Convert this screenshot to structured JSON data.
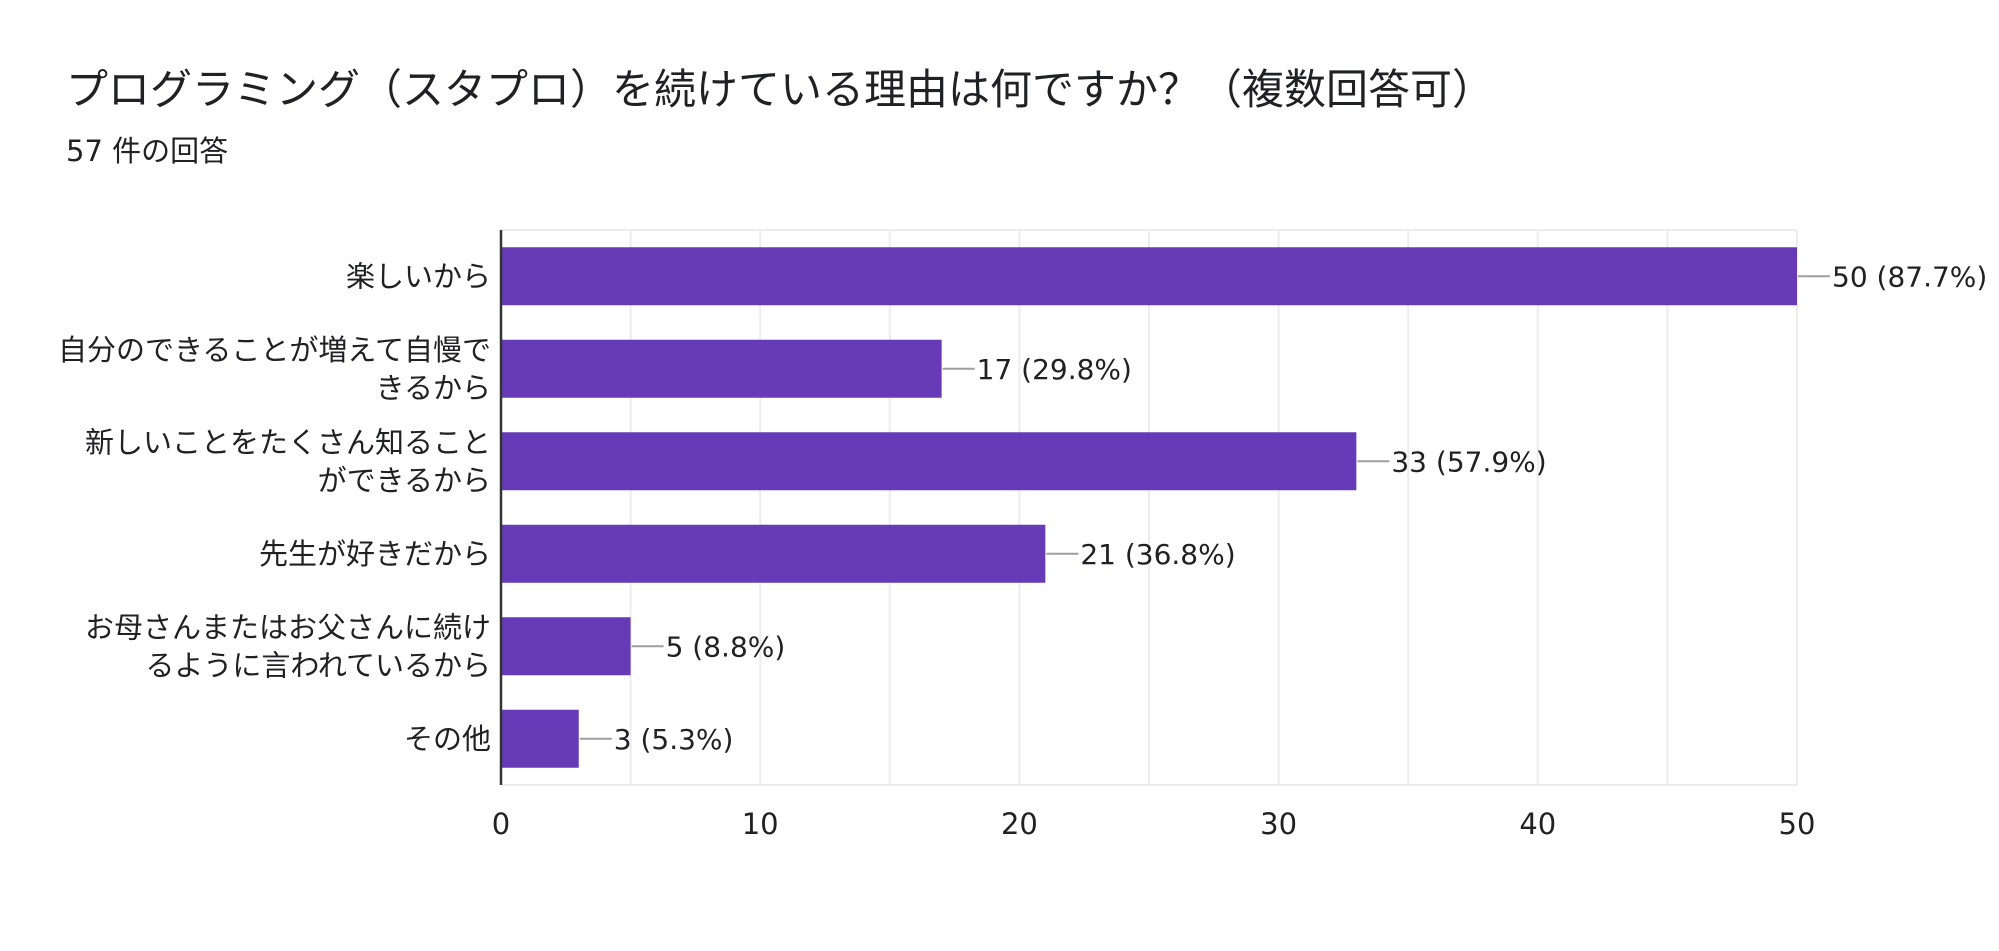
{
  "title": "プログラミング（スタプロ）を続けている理由は何ですか？（複数回答可）",
  "subtitle": "57 件の回答",
  "colors": {
    "bar": "#673ab7",
    "text": "#202124",
    "grid": "#ececec",
    "axis": "#333333",
    "leader": "#9e9e9e"
  },
  "chart_data": {
    "type": "bar",
    "orientation": "horizontal",
    "title": "プログラミング（スタプロ）を続けている理由は何ですか？（複数回答可）",
    "subtitle": "57 件の回答",
    "categories": [
      [
        "楽しいから"
      ],
      [
        "自分のできることが増えて自慢で",
        "きるから"
      ],
      [
        "新しいことをたくさん知ること",
        "ができるから"
      ],
      [
        "先生が好きだから"
      ],
      [
        "お母さんまたはお父さんに続け",
        "るように言われているから"
      ],
      [
        "その他"
      ]
    ],
    "values": [
      50,
      17,
      33,
      21,
      5,
      3
    ],
    "data_labels": [
      "50 (87.7%)",
      "17 (29.8%)",
      "33 (57.9%)",
      "21 (36.8%)",
      "5 (8.8%)",
      "3 (5.3%)"
    ],
    "xlim": [
      0,
      50
    ],
    "xticks": [
      0,
      10,
      20,
      30,
      40,
      50
    ],
    "grid": true,
    "legend": "none"
  }
}
